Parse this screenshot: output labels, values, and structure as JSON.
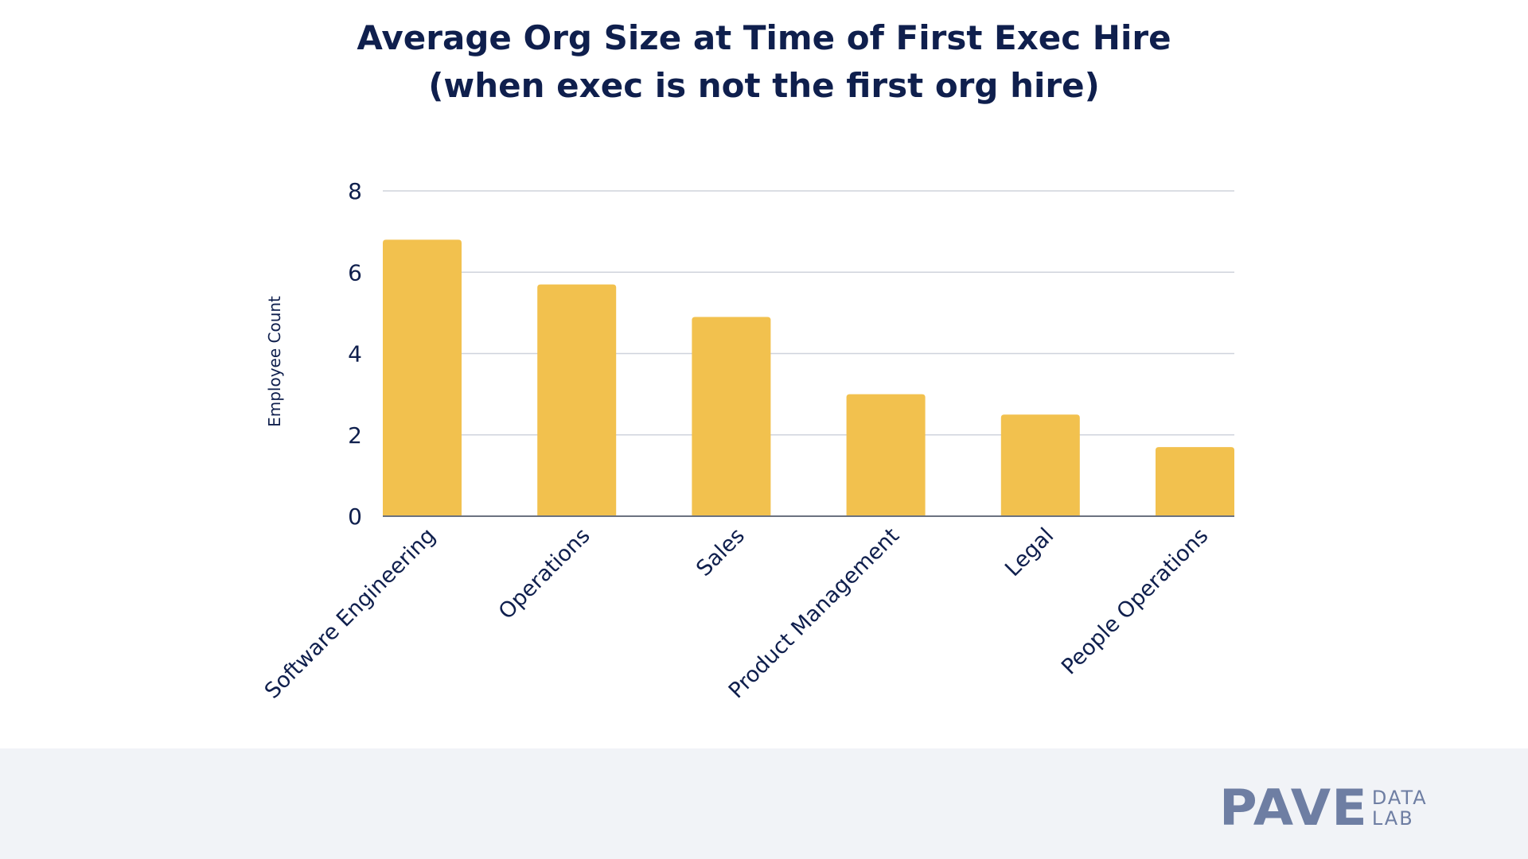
{
  "title_line1": "Average Org Size at Time of First Exec Hire",
  "title_line2": "(when exec is not the first org hire)",
  "logo": {
    "main": "PAVE",
    "sub1": "DATA",
    "sub2": "LAB"
  },
  "colors": {
    "bar": "#f2c14e",
    "title": "#0f1f4d",
    "grid": "#cfd3dc",
    "axis": "#6b7280",
    "footer_bg": "#f1f3f7",
    "logo": "#6e7ea3"
  },
  "chart_data": {
    "type": "bar",
    "title": "Average Org Size at Time of First Exec Hire (when exec is not the first org hire)",
    "xlabel": "",
    "ylabel": "Employee Count",
    "ylim": [
      0,
      8
    ],
    "yticks": [
      0,
      2,
      4,
      6,
      8
    ],
    "grid": true,
    "categories": [
      "Software Engineering",
      "Operations",
      "Sales",
      "Product Management",
      "Legal",
      "People Operations"
    ],
    "values": [
      6.8,
      5.7,
      4.9,
      3.0,
      2.5,
      1.7
    ]
  }
}
